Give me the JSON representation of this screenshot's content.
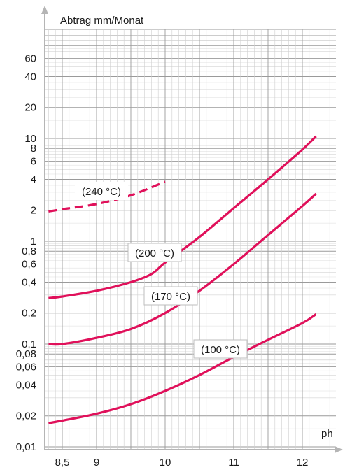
{
  "chart_data": {
    "type": "line",
    "ylabel": "Abtrag mm/Monat",
    "xlabel": "ph",
    "y_scale": "log",
    "ylim": [
      0.01,
      100
    ],
    "xlim": [
      8.3,
      12.4
    ],
    "grid": true,
    "y_ticks": [
      {
        "value": 0.01,
        "label": "0,01"
      },
      {
        "value": 0.02,
        "label": "0,02"
      },
      {
        "value": 0.04,
        "label": "0,04"
      },
      {
        "value": 0.06,
        "label": "0,06"
      },
      {
        "value": 0.08,
        "label": "0,08"
      },
      {
        "value": 0.1,
        "label": "0,1"
      },
      {
        "value": 0.2,
        "label": "0,2"
      },
      {
        "value": 0.4,
        "label": "0,4"
      },
      {
        "value": 0.6,
        "label": "0,6"
      },
      {
        "value": 0.8,
        "label": "0,8"
      },
      {
        "value": 1,
        "label": "1"
      },
      {
        "value": 2,
        "label": "2"
      },
      {
        "value": 4,
        "label": "4"
      },
      {
        "value": 6,
        "label": "6"
      },
      {
        "value": 8,
        "label": "8"
      },
      {
        "value": 10,
        "label": "10"
      },
      {
        "value": 20,
        "label": "20"
      },
      {
        "value": 40,
        "label": "40"
      },
      {
        "value": 60,
        "label": "60"
      }
    ],
    "x_ticks": [
      {
        "value": 8.5,
        "label": "8,5"
      },
      {
        "value": 9,
        "label": "9"
      },
      {
        "value": 10,
        "label": "10"
      },
      {
        "value": 11,
        "label": "11"
      },
      {
        "value": 12,
        "label": "12"
      }
    ],
    "series": [
      {
        "name": "(240 °C)",
        "dashed": true,
        "color": "#e0105a",
        "x": [
          8.3,
          8.5,
          9.0,
          9.5,
          10.0
        ],
        "y": [
          1.95,
          2.05,
          2.3,
          2.8,
          3.8
        ]
      },
      {
        "name": "(200 °C)",
        "dashed": false,
        "color": "#e0105a",
        "x": [
          8.3,
          8.5,
          9.0,
          9.5,
          9.8,
          10.0,
          10.5,
          11.0,
          11.5,
          12.0,
          12.2
        ],
        "y": [
          0.28,
          0.29,
          0.33,
          0.4,
          0.48,
          0.62,
          1.1,
          2.1,
          4.0,
          7.8,
          10.5
        ]
      },
      {
        "name": "(170 °C)",
        "dashed": false,
        "color": "#e0105a",
        "x": [
          8.3,
          8.5,
          9.0,
          9.5,
          10.0,
          10.5,
          11.0,
          11.5,
          12.0,
          12.2
        ],
        "y": [
          0.1,
          0.1,
          0.115,
          0.14,
          0.2,
          0.33,
          0.6,
          1.15,
          2.2,
          2.9
        ]
      },
      {
        "name": "(100 °C)",
        "dashed": false,
        "color": "#e0105a",
        "x": [
          8.3,
          8.5,
          9.0,
          9.5,
          10.0,
          10.5,
          11.0,
          11.5,
          12.0,
          12.2
        ],
        "y": [
          0.017,
          0.018,
          0.021,
          0.026,
          0.035,
          0.05,
          0.075,
          0.11,
          0.16,
          0.195
        ]
      }
    ]
  }
}
